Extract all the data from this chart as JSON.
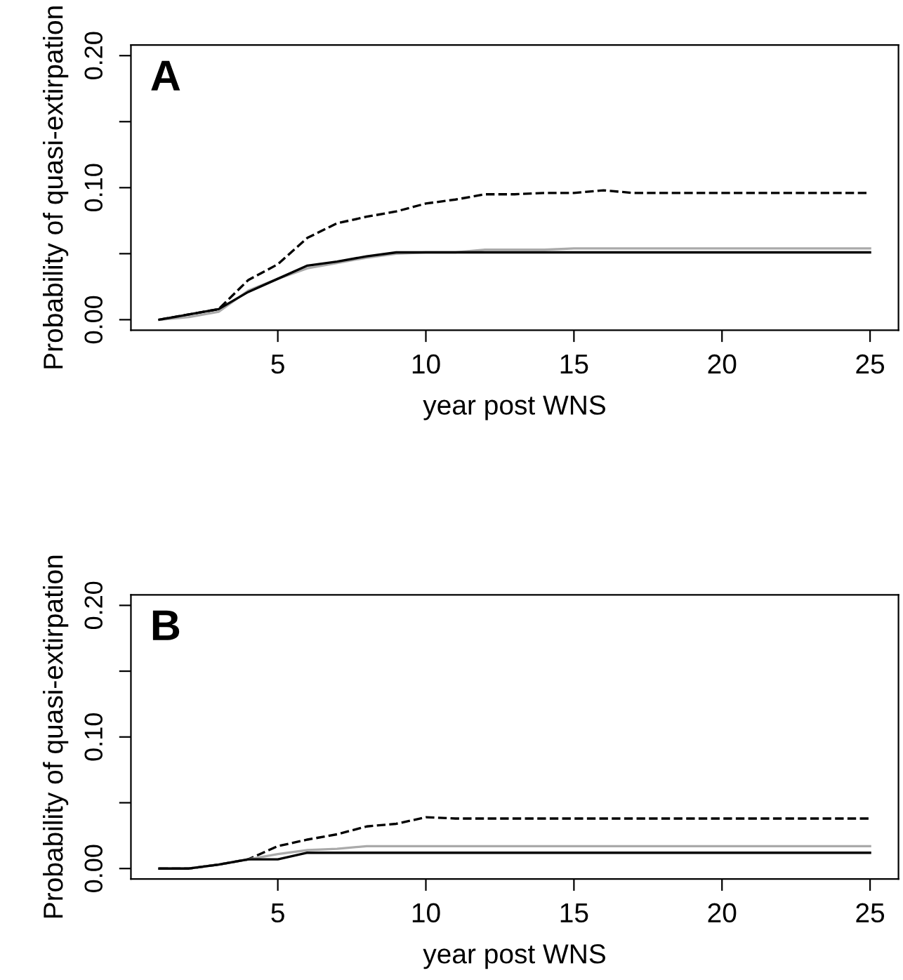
{
  "chart_data": [
    {
      "type": "line",
      "xlabel": "year post WNS",
      "ylabel": "Probability of quasi-extirpation",
      "annotations": [
        "A"
      ],
      "x": [
        1,
        2,
        3,
        4,
        5,
        6,
        7,
        8,
        9,
        10,
        11,
        12,
        13,
        14,
        15,
        16,
        17,
        18,
        19,
        20,
        21,
        22,
        23,
        24,
        25
      ],
      "series": [
        {
          "color": "#000000",
          "line_style": "dashed",
          "values": [
            0,
            0.004,
            0.008,
            0.03,
            0.042,
            0.062,
            0.073,
            0.078,
            0.082,
            0.088,
            0.091,
            0.095,
            0.095,
            0.096,
            0.096,
            0.098,
            0.096,
            0.096,
            0.096,
            0.096,
            0.096,
            0.096,
            0.096,
            0.096,
            0.096
          ]
        },
        {
          "color": "#aaaaaa",
          "line_style": "solid",
          "values": [
            0,
            0.002,
            0.006,
            0.022,
            0.031,
            0.039,
            0.043,
            0.047,
            0.05,
            0.051,
            0.051,
            0.053,
            0.053,
            0.053,
            0.054,
            0.054,
            0.054,
            0.054,
            0.054,
            0.054,
            0.054,
            0.054,
            0.054,
            0.054,
            0.054
          ]
        },
        {
          "color": "#000000",
          "line_style": "solid",
          "values": [
            0,
            0.004,
            0.008,
            0.021,
            0.031,
            0.041,
            0.044,
            0.048,
            0.051,
            0.051,
            0.051,
            0.051,
            0.051,
            0.051,
            0.051,
            0.051,
            0.051,
            0.051,
            0.051,
            0.051,
            0.051,
            0.051,
            0.051,
            0.051,
            0.051
          ]
        }
      ],
      "xlim": [
        0.04,
        25.96
      ],
      "xticks": [
        5,
        10,
        15,
        20,
        25
      ],
      "ylim": [
        -0.008,
        0.208
      ],
      "yticks": [
        {
          "value": 0,
          "label": "0.00"
        },
        {
          "value": 0.05,
          "label": null
        },
        {
          "value": 0.1,
          "label": "0.10"
        },
        {
          "value": 0.15,
          "label": null
        },
        {
          "value": 0.2,
          "label": "0.20"
        }
      ],
      "grid": false,
      "legend": false
    },
    {
      "type": "line",
      "xlabel": "year post WNS",
      "ylabel": "Probability of quasi-extirpation",
      "annotations": [
        "B"
      ],
      "x": [
        1,
        2,
        3,
        4,
        5,
        6,
        7,
        8,
        9,
        10,
        11,
        12,
        13,
        14,
        15,
        16,
        17,
        18,
        19,
        20,
        21,
        22,
        23,
        24,
        25
      ],
      "series": [
        {
          "color": "#000000",
          "line_style": "dashed",
          "values": [
            0,
            0,
            0.003,
            0.007,
            0.017,
            0.022,
            0.026,
            0.032,
            0.034,
            0.039,
            0.038,
            0.038,
            0.038,
            0.038,
            0.038,
            0.038,
            0.038,
            0.038,
            0.038,
            0.038,
            0.038,
            0.038,
            0.038,
            0.038,
            0.038
          ]
        },
        {
          "color": "#aaaaaa",
          "line_style": "solid",
          "values": [
            0,
            0,
            0.003,
            0.007,
            0.011,
            0.014,
            0.015,
            0.017,
            0.017,
            0.017,
            0.017,
            0.017,
            0.017,
            0.017,
            0.017,
            0.017,
            0.017,
            0.017,
            0.017,
            0.017,
            0.017,
            0.017,
            0.017,
            0.017,
            0.017
          ]
        },
        {
          "color": "#000000",
          "line_style": "solid",
          "values": [
            0,
            0,
            0.003,
            0.007,
            0.007,
            0.012,
            0.012,
            0.012,
            0.012,
            0.012,
            0.012,
            0.012,
            0.012,
            0.012,
            0.012,
            0.012,
            0.012,
            0.012,
            0.012,
            0.012,
            0.012,
            0.012,
            0.012,
            0.012,
            0.012
          ]
        }
      ],
      "xlim": [
        0.04,
        25.96
      ],
      "xticks": [
        5,
        10,
        15,
        20,
        25
      ],
      "ylim": [
        -0.008,
        0.208
      ],
      "yticks": [
        {
          "value": 0,
          "label": "0.00"
        },
        {
          "value": 0.05,
          "label": null
        },
        {
          "value": 0.1,
          "label": "0.10"
        },
        {
          "value": 0.15,
          "label": null
        },
        {
          "value": 0.2,
          "label": "0.20"
        }
      ],
      "grid": false,
      "legend": false
    }
  ]
}
